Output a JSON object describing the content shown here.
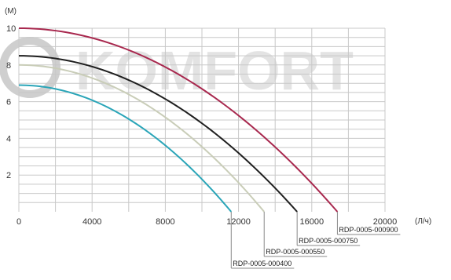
{
  "watermark": {
    "text": "KOMFORT",
    "color": "#c9c9c9"
  },
  "chart_data": {
    "type": "line",
    "title": "",
    "xlabel": "(Л/ч)",
    "ylabel": "(M)",
    "xlim": [
      0,
      20000
    ],
    "ylim": [
      0,
      10
    ],
    "x_tick_values": [
      0,
      4000,
      8000,
      12000,
      16000,
      20000
    ],
    "x_tick_labels": [
      "0",
      "4000",
      "8000",
      "12000",
      "16000",
      "20000"
    ],
    "y_tick_values": [
      2,
      4,
      6,
      8,
      10
    ],
    "y_tick_labels": [
      "2",
      "4",
      "6",
      "8",
      "10"
    ],
    "grid": true,
    "grid_color": "#c8c8c8",
    "series": [
      {
        "name": "RDP-0005-000400",
        "color": "#2aa5b8",
        "shutoff_head": 6.9,
        "max_flow": 11600
      },
      {
        "name": "RDP-0005-000550",
        "color": "#c9cdb8",
        "shutoff_head": 8.0,
        "max_flow": 13400
      },
      {
        "name": "RDP-0005-000750",
        "color": "#1f1f1f",
        "shutoff_head": 8.5,
        "max_flow": 15200
      },
      {
        "name": "RDP-0005-000900",
        "color": "#a8284e",
        "shutoff_head": 10.0,
        "max_flow": 17400
      }
    ]
  }
}
